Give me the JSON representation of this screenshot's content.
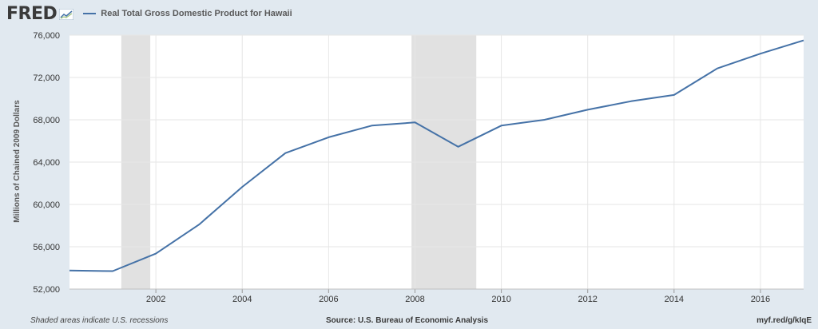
{
  "header": {
    "logo_text": "FRED",
    "logo_icon": "trend-graph-icon",
    "legend_label": "Real Total Gross Domestic Product for Hawaii"
  },
  "footer": {
    "note": "Shaded areas indicate U.S. recessions",
    "source": "Source: U.S. Bureau of Economic Analysis",
    "link": "myf.red/g/kIqE"
  },
  "colors": {
    "line": "#4572a7",
    "recession": "#e1e1e1",
    "background": "#e1e9f0",
    "plot_background": "#ffffff",
    "grid": "#e6e6e6"
  },
  "chart_data": {
    "type": "line",
    "title": "",
    "xlabel": "",
    "ylabel": "Millions of Chained 2009 Dollars",
    "xlim": [
      2000,
      2017
    ],
    "ylim": [
      52000,
      76000
    ],
    "yticks": [
      52000,
      56000,
      60000,
      64000,
      68000,
      72000,
      76000
    ],
    "ytick_labels": [
      "52,000",
      "56,000",
      "60,000",
      "64,000",
      "68,000",
      "72,000",
      "76,000"
    ],
    "xticks": [
      2002,
      2004,
      2006,
      2008,
      2010,
      2012,
      2014,
      2016
    ],
    "xtick_labels": [
      "2002",
      "2004",
      "2006",
      "2008",
      "2010",
      "2012",
      "2014",
      "2016"
    ],
    "grid": true,
    "recessions": [
      [
        2001.2,
        2001.87
      ],
      [
        2007.92,
        2009.42
      ]
    ],
    "series": [
      {
        "name": "Real Total Gross Domestic Product for Hawaii",
        "x": [
          2000,
          2001,
          2002,
          2003,
          2004,
          2005,
          2006,
          2007,
          2008,
          2009,
          2010,
          2011,
          2012,
          2013,
          2014,
          2015,
          2016,
          2017
        ],
        "y": [
          53750,
          53700,
          55350,
          58100,
          61650,
          64850,
          66350,
          67450,
          67750,
          65450,
          67450,
          68000,
          68950,
          69750,
          70350,
          72850,
          74250,
          75500
        ]
      }
    ]
  }
}
